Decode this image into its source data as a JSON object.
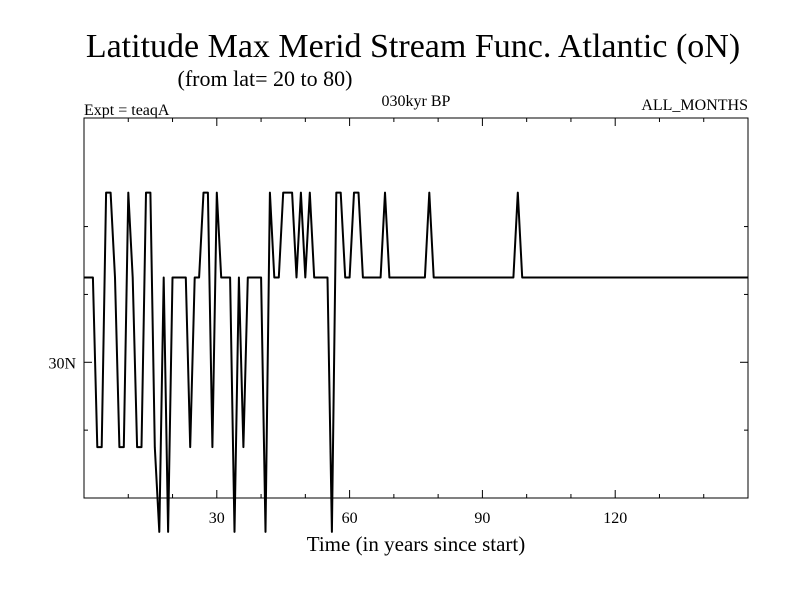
{
  "chart_data": {
    "type": "line",
    "title": "Latitude Max Merid Stream Func. Atlantic (oN)",
    "subtitle": "(from lat= 20 to 80)",
    "experiment": "Expt = teaqA",
    "period": "030kyr BP",
    "months": "ALL_MONTHS",
    "xlabel": "Time (in years since start)",
    "ylabel": "",
    "xlim": [
      0,
      150
    ],
    "ylim": [
      26,
      37.2
    ],
    "x_ticks": [
      30,
      60,
      90,
      120
    ],
    "x_minor_ticks": [
      10,
      20,
      40,
      50,
      70,
      80,
      100,
      110,
      130,
      140
    ],
    "y_ticks": [
      30
    ],
    "y_tick_labels": [
      "30N"
    ],
    "y_minor_ticks": [
      28,
      32,
      34
    ],
    "grid": false,
    "series": [
      {
        "color": "#000000",
        "x": [
          0,
          2,
          3,
          4,
          5,
          6,
          7,
          8,
          9,
          10,
          11,
          12,
          13,
          14,
          15,
          16,
          17,
          18,
          19,
          20,
          21,
          22,
          23,
          24,
          25,
          26,
          27,
          28,
          29,
          30,
          31,
          32,
          33,
          34,
          35,
          36,
          37,
          38,
          39,
          40,
          41,
          42,
          43,
          44,
          45,
          46,
          47,
          48,
          49,
          50,
          51,
          52,
          53,
          54,
          55,
          56,
          57,
          58,
          59,
          60,
          61,
          62,
          63,
          64,
          65,
          66,
          67,
          68,
          69,
          70,
          75,
          77,
          78,
          79,
          80,
          85,
          92,
          97,
          98,
          99,
          100,
          150
        ],
        "y": [
          32.5,
          32.5,
          27.5,
          27.5,
          35,
          35,
          32.5,
          27.5,
          27.5,
          35,
          32.5,
          27.5,
          27.5,
          35,
          35,
          27.5,
          25,
          32.5,
          25,
          32.5,
          32.5,
          32.5,
          32.5,
          27.5,
          32.5,
          32.5,
          35,
          35,
          27.5,
          35,
          32.5,
          32.5,
          32.5,
          25,
          32.5,
          27.5,
          32.5,
          32.5,
          32.5,
          32.5,
          25,
          35,
          32.5,
          32.5,
          35,
          35,
          35,
          32.5,
          35,
          32.5,
          35,
          32.5,
          32.5,
          32.5,
          32.5,
          25,
          35,
          35,
          32.5,
          32.5,
          35,
          35,
          32.5,
          32.5,
          32.5,
          32.5,
          32.5,
          35,
          32.5,
          32.5,
          32.5,
          32.5,
          35,
          32.5,
          32.5,
          32.5,
          32.5,
          32.5,
          35,
          32.5,
          32.5,
          32.5
        ]
      }
    ]
  }
}
